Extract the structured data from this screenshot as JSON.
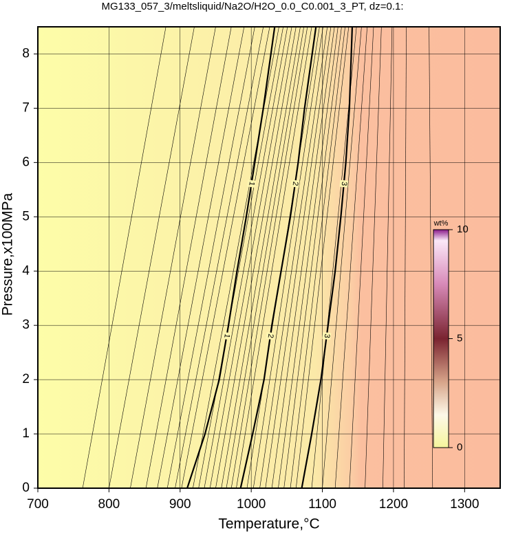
{
  "chart_data": {
    "type": "contour",
    "title": "MG133_057_3/meltsliquid/Na2O/H2O_0.0_C0.001_3_PT, dz=0.1:",
    "x_label": "Temperature,°C",
    "y_label": "Pressure,x100MPa",
    "xlim": [
      700,
      1350
    ],
    "ylim": [
      0,
      8.5
    ],
    "xticks": [
      700,
      800,
      900,
      1000,
      1100,
      1200,
      1300
    ],
    "yticks": [
      0,
      1,
      2,
      3,
      4,
      5,
      6,
      7,
      8
    ],
    "grid": true,
    "contours": [
      {
        "level": 1,
        "x": [
          910,
          935,
          955,
          968,
          980,
          993,
          1005,
          1017,
          1033
        ],
        "y": [
          0,
          1,
          2,
          3,
          4,
          5,
          6,
          7,
          8.5
        ]
      },
      {
        "level": 2,
        "x": [
          985,
          1002,
          1018,
          1029,
          1042,
          1055,
          1066,
          1075,
          1091
        ],
        "y": [
          0,
          1,
          2,
          3,
          4,
          5,
          6,
          7,
          8.5
        ]
      },
      {
        "level": 3,
        "x": [
          1071,
          1085,
          1098,
          1108,
          1118,
          1126,
          1133,
          1138,
          1142
        ],
        "y": [
          0,
          1,
          2,
          3,
          4,
          5,
          6,
          7,
          8.5
        ]
      }
    ],
    "minor_contours": {
      "levels": [
        0.2,
        0.3,
        0.4,
        0.5,
        0.6,
        0.7,
        0.8,
        0.9,
        1.1,
        1.2,
        1.3,
        1.4,
        1.5,
        1.6,
        1.7,
        1.8,
        1.9,
        2.1,
        2.2,
        2.3,
        2.4,
        2.5,
        2.6,
        2.7,
        2.8,
        2.9,
        3.1,
        3.2,
        3.3,
        3.4,
        3.5,
        3.6,
        3.7,
        3.8
      ],
      "x_bottom": [
        763,
        800,
        830,
        852,
        868,
        882,
        893,
        902,
        918,
        926,
        934,
        942,
        950,
        958,
        965,
        972,
        979,
        994,
        1003,
        1012,
        1020,
        1029,
        1038,
        1046,
        1055,
        1063,
        1085,
        1100,
        1118,
        1138,
        1160,
        1185,
        1215,
        1255
      ],
      "x_top": [
        880,
        920,
        950,
        972,
        990,
        1005,
        1017,
        1026,
        1039,
        1045,
        1051,
        1057,
        1063,
        1069,
        1074,
        1079,
        1085,
        1096,
        1101,
        1107,
        1112,
        1117,
        1122,
        1127,
        1132,
        1137,
        1148,
        1155,
        1163,
        1172,
        1183,
        1198,
        1218,
        1250
      ]
    },
    "colorbar": {
      "label": "wt%",
      "lim": [
        0,
        10
      ],
      "ticks": [
        0,
        5,
        10
      ]
    }
  }
}
